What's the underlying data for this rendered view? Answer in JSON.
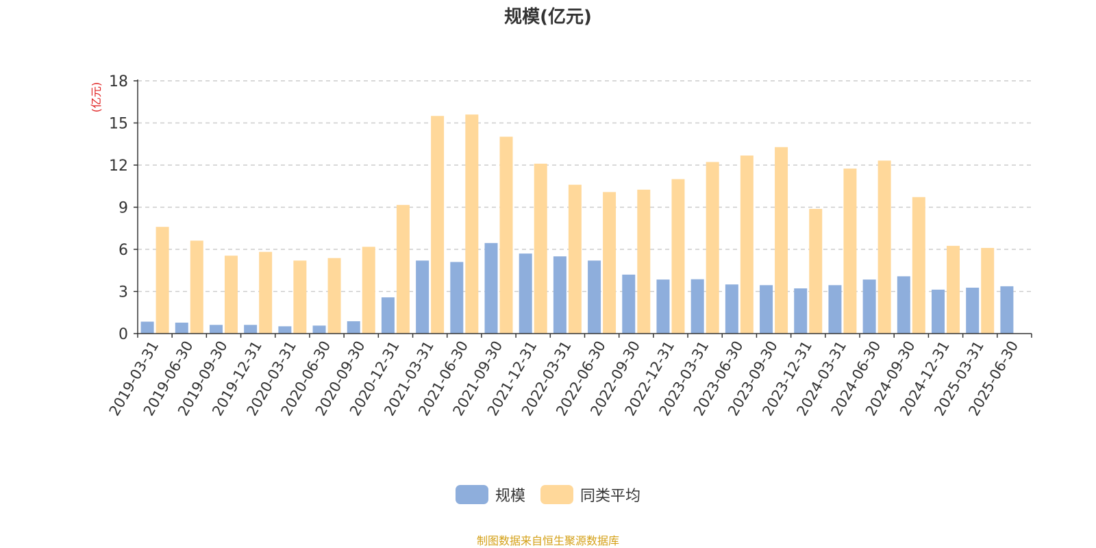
{
  "title": "规模(亿元)",
  "source_note": "制图数据来自恒生聚源数据库",
  "colors": {
    "series_a": "#8eaedc",
    "series_b": "#ffd89a",
    "unit_label": "#e02020",
    "axis": "#333333",
    "grid": "#cccccc"
  },
  "chart_data": {
    "type": "bar",
    "title": "规模(亿元)",
    "ylabel": "(亿元)",
    "xlabel": "",
    "ylim": [
      0,
      18
    ],
    "yticks": [
      0,
      3,
      6,
      9,
      12,
      15,
      18
    ],
    "grid": true,
    "legend_position": "bottom-center",
    "categories": [
      "2019-03-31",
      "2019-06-30",
      "2019-09-30",
      "2019-12-31",
      "2020-03-31",
      "2020-06-30",
      "2020-09-30",
      "2020-12-31",
      "2021-03-31",
      "2021-06-30",
      "2021-09-30",
      "2021-12-31",
      "2022-03-31",
      "2022-06-30",
      "2022-09-30",
      "2022-12-31",
      "2023-03-31",
      "2023-06-30",
      "2023-09-30",
      "2023-12-31",
      "2024-03-31",
      "2024-06-30",
      "2024-09-30",
      "2024-12-31",
      "2025-03-31",
      "2025-06-30"
    ],
    "series": [
      {
        "name": "规模",
        "values": [
          0.85,
          0.78,
          0.62,
          0.62,
          0.52,
          0.57,
          0.88,
          2.58,
          5.2,
          5.1,
          6.45,
          5.7,
          5.5,
          5.2,
          4.2,
          3.85,
          3.87,
          3.5,
          3.45,
          3.22,
          3.45,
          3.85,
          4.08,
          3.13,
          3.27,
          3.37
        ]
      },
      {
        "name": "同类平均",
        "values": [
          7.6,
          6.62,
          5.55,
          5.82,
          5.2,
          5.38,
          6.18,
          9.16,
          15.5,
          15.6,
          14.02,
          12.1,
          10.6,
          10.08,
          10.25,
          11.0,
          12.22,
          12.68,
          13.28,
          8.88,
          11.75,
          12.32,
          9.72,
          6.25,
          6.1,
          null
        ]
      }
    ]
  }
}
